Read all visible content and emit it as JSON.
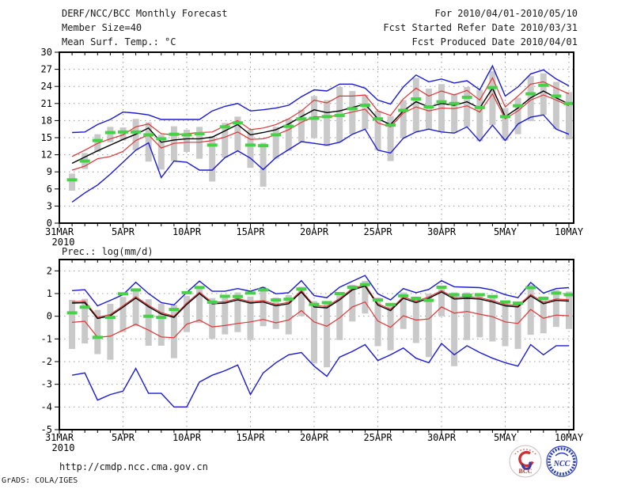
{
  "header": {
    "title": "DERF/NCC/BCC Monthly Forecast",
    "member_size": "Member Size=40",
    "for_period": "For 2010/04/01-2010/05/10",
    "refer_date": "Fcst Started Refer Date 2010/03/31",
    "produced_date": "Fcst Produced Date 2010/04/01"
  },
  "footer": {
    "url": "http://cmdp.ncc.cma.gov.cn",
    "credit": "GrADS: COLA/IGES",
    "logo_bcc": "BCC",
    "logo_ncc": "NCC"
  },
  "colors": {
    "blue": "#1a1ad6",
    "red": "#e03434",
    "black": "#000000",
    "green": "#46d246",
    "bar_gray": "#c9c9c9",
    "grid": "#999999"
  },
  "chart_data": [
    {
      "type": "line",
      "title": "Mean Surf. Temp.: °C",
      "xlabel": "",
      "ylabel": "°C",
      "ylim": [
        0,
        30
      ],
      "yticks": [
        0,
        3,
        6,
        9,
        12,
        15,
        18,
        21,
        24,
        27,
        30
      ],
      "grid": true,
      "legend_position": "none",
      "x_year": "2010",
      "x_tick_labels": [
        "31MAR",
        "5APR",
        "10APR",
        "15APR",
        "20APR",
        "25APR",
        "30APR",
        "5MAY",
        "10MAY"
      ],
      "n_days": 40,
      "series": {
        "ensemble_mean": [
          10.5,
          11.6,
          12.7,
          13.7,
          14.7,
          15.6,
          16.7,
          14.2,
          14.6,
          14.8,
          14.8,
          15.1,
          16.2,
          17.3,
          15.5,
          15.9,
          16.4,
          17.4,
          18.7,
          19.9,
          19.4,
          19.7,
          20.3,
          20.9,
          18.3,
          17.3,
          19.7,
          21.3,
          20.4,
          21.0,
          20.7,
          21.3,
          20.2,
          23.7,
          18.7,
          20.2,
          22.0,
          23.2,
          22.0,
          20.9
        ],
        "band_upper": [
          11.7,
          12.8,
          14.0,
          14.8,
          15.5,
          16.9,
          17.4,
          15.7,
          15.5,
          15.7,
          15.9,
          16.0,
          17.1,
          18.0,
          16.4,
          16.7,
          17.3,
          18.3,
          19.7,
          21.6,
          21.1,
          22.3,
          22.3,
          22.5,
          19.7,
          18.9,
          21.8,
          23.7,
          22.3,
          23.2,
          22.5,
          23.3,
          21.6,
          25.5,
          20.4,
          22.3,
          24.4,
          24.8,
          23.7,
          22.7
        ],
        "band_lower": [
          9.3,
          10.0,
          11.3,
          11.7,
          12.6,
          14.5,
          15.5,
          13.2,
          14.0,
          14.2,
          14.2,
          14.5,
          15.1,
          16.0,
          14.7,
          14.8,
          15.5,
          16.4,
          17.7,
          18.7,
          18.6,
          19.0,
          19.5,
          20.0,
          17.6,
          16.9,
          19.3,
          20.4,
          19.7,
          20.2,
          20.1,
          20.6,
          19.5,
          22.7,
          18.3,
          19.7,
          21.6,
          22.5,
          21.6,
          20.6
        ],
        "ensemble_max": [
          15.9,
          16.0,
          17.3,
          18.2,
          19.5,
          19.3,
          19.0,
          18.2,
          18.2,
          18.2,
          18.2,
          19.7,
          20.5,
          21.0,
          19.7,
          19.9,
          20.2,
          20.7,
          22.2,
          23.4,
          23.2,
          24.4,
          24.4,
          23.7,
          21.6,
          20.9,
          23.9,
          26.0,
          24.8,
          25.3,
          24.6,
          25.0,
          23.4,
          27.6,
          22.3,
          23.9,
          26.2,
          26.9,
          25.3,
          24.1
        ],
        "ensemble_min": [
          3.7,
          5.3,
          6.7,
          8.6,
          10.7,
          12.8,
          14.1,
          8.0,
          10.9,
          10.7,
          9.3,
          9.3,
          11.5,
          12.7,
          11.4,
          9.4,
          11.5,
          12.9,
          14.3,
          14.0,
          13.7,
          14.2,
          15.6,
          16.5,
          12.8,
          12.3,
          14.9,
          16.0,
          16.5,
          16.0,
          15.8,
          16.9,
          14.4,
          17.2,
          14.5,
          17.4,
          18.6,
          19.0,
          16.5,
          15.6
        ],
        "observation": [
          7.6,
          10.9,
          14.5,
          15.9,
          16.0,
          16.0,
          15.5,
          14.8,
          15.6,
          15.5,
          15.7,
          13.7,
          16.9,
          17.6,
          13.7,
          13.6,
          15.5,
          17.0,
          18.3,
          18.4,
          18.7,
          18.9,
          20.1,
          20.7,
          18.3,
          17.2,
          19.8,
          21.8,
          20.4,
          21.3,
          21.0,
          22.1,
          20.3,
          23.8,
          18.7,
          20.6,
          22.7,
          24.2,
          22.3,
          21.0
        ],
        "spread_bar_top": [
          8.7,
          12.3,
          15.6,
          16.9,
          16.8,
          18.3,
          17.7,
          15.5,
          17.0,
          16.4,
          16.9,
          15.3,
          17.6,
          18.7,
          16.4,
          14.1,
          16.9,
          18.3,
          19.9,
          22.3,
          21.6,
          23.9,
          23.2,
          22.5,
          19.7,
          18.8,
          21.6,
          25.5,
          23.6,
          24.4,
          22.7,
          23.9,
          23.4,
          26.7,
          20.2,
          22.0,
          25.8,
          26.3,
          24.8,
          23.0
        ],
        "spread_bar_bottom": [
          5.7,
          9.5,
          12.5,
          14.2,
          14.5,
          12.8,
          10.8,
          9.4,
          10.9,
          12.5,
          11.3,
          7.3,
          11.5,
          12.7,
          9.7,
          6.4,
          11.3,
          12.7,
          14.3,
          14.9,
          13.5,
          14.2,
          15.6,
          16.5,
          12.8,
          10.9,
          14.9,
          16.0,
          16.5,
          16.0,
          15.8,
          16.9,
          14.4,
          17.2,
          14.5,
          15.6,
          17.9,
          19.0,
          16.5,
          14.7
        ]
      }
    },
    {
      "type": "line",
      "title": "Prec.: log(mm/d)",
      "xlabel": "",
      "ylabel": "log(mm/d)",
      "ylim": [
        -5,
        2.5
      ],
      "yticks": [
        -5,
        -4,
        -3,
        -2,
        -1,
        0,
        1,
        2
      ],
      "grid": true,
      "legend_position": "none",
      "x_year": "2010",
      "x_tick_labels": [
        "31MAR",
        "5APR",
        "10APR",
        "15APR",
        "20APR",
        "25APR",
        "30APR",
        "5MAY",
        "10MAY"
      ],
      "n_days": 40,
      "series": {
        "ensemble_mean": [
          0.58,
          0.6,
          -0.1,
          0.02,
          0.4,
          0.8,
          0.42,
          0.1,
          -0.05,
          0.52,
          1.0,
          0.55,
          0.58,
          0.72,
          0.58,
          0.63,
          0.46,
          0.55,
          1.07,
          0.41,
          0.37,
          0.72,
          1.16,
          1.33,
          0.49,
          0.25,
          0.79,
          0.6,
          0.79,
          1.07,
          0.76,
          0.79,
          0.76,
          0.63,
          0.46,
          0.41,
          0.9,
          0.55,
          0.7,
          0.67
        ],
        "band_upper": [
          0.64,
          0.66,
          -0.05,
          0.08,
          0.46,
          0.86,
          0.48,
          0.16,
          0.0,
          0.58,
          1.06,
          0.61,
          0.64,
          0.78,
          0.64,
          0.69,
          0.52,
          0.61,
          1.13,
          0.47,
          0.43,
          0.78,
          1.22,
          1.39,
          0.55,
          0.31,
          0.85,
          0.66,
          0.85,
          1.13,
          0.82,
          0.85,
          0.82,
          0.69,
          0.52,
          0.47,
          0.96,
          0.61,
          0.76,
          0.73
        ],
        "band_lower": [
          -0.27,
          -0.22,
          -0.93,
          -0.88,
          -0.61,
          -0.35,
          -0.61,
          -0.91,
          -0.95,
          -0.35,
          -0.17,
          -0.47,
          -0.41,
          -0.32,
          -0.25,
          -0.14,
          -0.29,
          -0.17,
          0.25,
          -0.25,
          -0.44,
          -0.07,
          0.41,
          0.63,
          -0.21,
          -0.49,
          0.02,
          -0.17,
          -0.12,
          0.41,
          0.14,
          0.21,
          0.09,
          -0.02,
          -0.25,
          -0.32,
          0.3,
          -0.09,
          0.05,
          0.02
        ],
        "ensemble_max": [
          1.13,
          1.17,
          0.46,
          0.7,
          0.95,
          1.5,
          1.0,
          0.6,
          0.5,
          1.05,
          1.55,
          1.1,
          1.1,
          1.22,
          1.1,
          1.28,
          0.99,
          1.04,
          1.57,
          0.91,
          0.82,
          1.28,
          1.54,
          1.8,
          0.99,
          0.72,
          1.22,
          1.04,
          1.18,
          1.57,
          1.3,
          1.28,
          1.26,
          1.16,
          0.95,
          0.82,
          1.49,
          1.02,
          1.22,
          1.26
        ],
        "ensemble_min": [
          -2.6,
          -2.5,
          -3.7,
          -3.45,
          -3.3,
          -2.3,
          -3.4,
          -3.4,
          -4.0,
          -4.0,
          -2.9,
          -2.6,
          -2.4,
          -2.15,
          -3.45,
          -2.5,
          -2.05,
          -1.7,
          -1.6,
          -2.2,
          -2.65,
          -1.8,
          -1.55,
          -1.25,
          -1.95,
          -1.7,
          -1.4,
          -1.85,
          -2.05,
          -1.2,
          -1.7,
          -1.3,
          -1.6,
          -1.85,
          -2.05,
          -2.2,
          -1.25,
          -1.7,
          -1.3,
          -1.3
        ],
        "observation": [
          0.15,
          0.4,
          -0.93,
          -0.05,
          0.99,
          1.16,
          0.0,
          -0.05,
          0.3,
          1.04,
          1.27,
          0.62,
          0.88,
          0.87,
          1.02,
          1.16,
          0.72,
          0.75,
          1.2,
          0.52,
          0.6,
          1.0,
          1.28,
          1.4,
          0.72,
          0.52,
          0.9,
          0.79,
          0.7,
          1.28,
          0.95,
          0.93,
          0.95,
          0.87,
          0.63,
          0.58,
          1.26,
          0.79,
          1.02,
          0.95
        ],
        "spread_bar_top": [
          0.72,
          0.77,
          0.28,
          0.55,
          0.85,
          1.2,
          0.75,
          0.55,
          0.5,
          0.9,
          1.3,
          0.8,
          0.9,
          1.05,
          0.87,
          1.3,
          0.82,
          0.93,
          1.3,
          0.67,
          0.58,
          0.93,
          1.39,
          1.56,
          0.82,
          0.58,
          1.05,
          0.87,
          0.99,
          1.35,
          1.05,
          1.05,
          0.98,
          0.87,
          0.67,
          0.61,
          1.39,
          0.87,
          1.16,
          1.09
        ],
        "spread_bar_bottom": [
          -1.44,
          -1.2,
          -1.67,
          -1.92,
          -0.7,
          -0.44,
          -1.3,
          -1.3,
          -1.85,
          -0.7,
          -0.3,
          -1.0,
          -0.8,
          -0.7,
          -1.05,
          -0.44,
          -0.56,
          -0.8,
          0.0,
          -2.08,
          -2.25,
          -1.05,
          -0.23,
          0.12,
          -1.32,
          -1.5,
          -0.56,
          -1.18,
          -1.8,
          0.0,
          -2.2,
          -1.05,
          -0.93,
          -1.11,
          -1.32,
          -1.44,
          -0.82,
          -0.75,
          -0.47,
          -0.56
        ]
      }
    }
  ]
}
